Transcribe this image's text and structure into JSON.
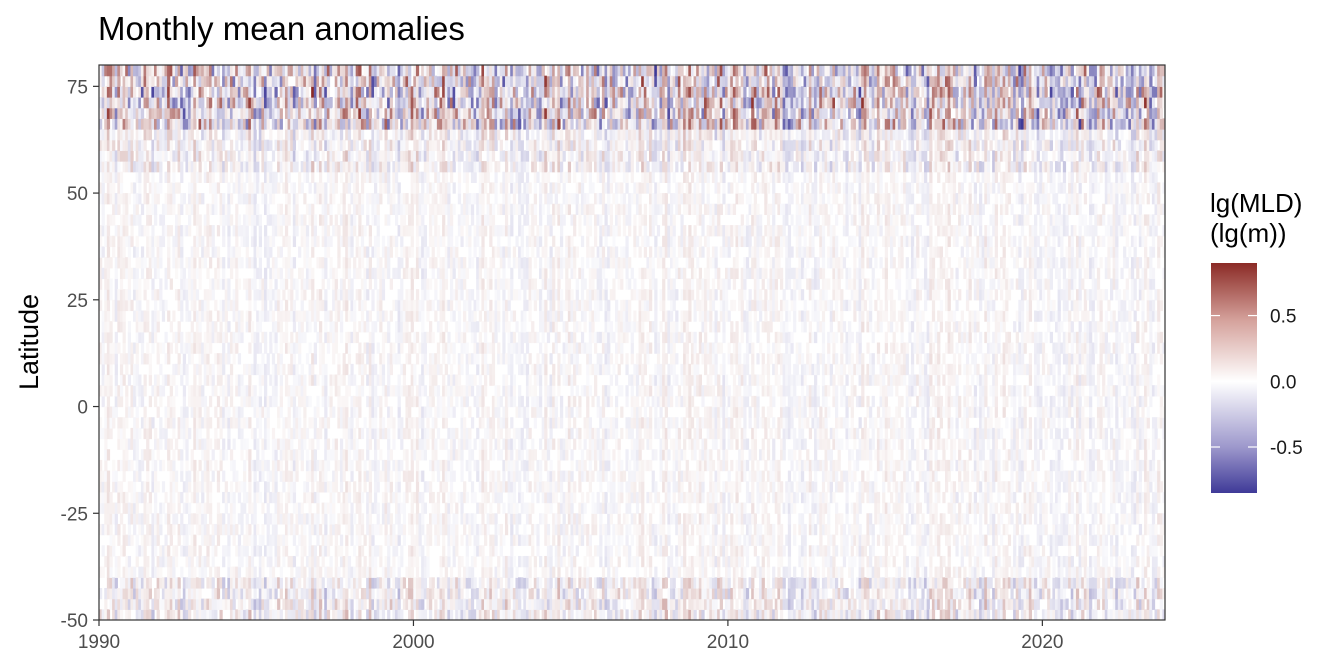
{
  "chart_data": {
    "type": "heatmap",
    "title": "Monthly mean anomalies",
    "xlabel": "",
    "ylabel": "Latitude",
    "x_ticks": [
      1990,
      2000,
      2010,
      2020
    ],
    "y_ticks": [
      75,
      50,
      25,
      0,
      -25,
      -50
    ],
    "x_range": [
      1990,
      2023.9
    ],
    "y_range": [
      -50,
      80
    ],
    "grid": false,
    "legend": {
      "title_line1": "lg(MLD)",
      "title_line2": "(lg(m))",
      "placement": "right",
      "ticks": [
        0.5,
        0.0,
        -0.5
      ],
      "tick_labels": [
        "0.5",
        "0.0",
        "-0.5"
      ],
      "range": [
        -0.85,
        0.9
      ]
    },
    "colorscale": {
      "low": "#3f3a98",
      "mid": "#ffffff",
      "high": "#8b2b26"
    },
    "bands": [
      {
        "lat_range": [
          65,
          80
        ],
        "note_level": "strong"
      },
      {
        "lat_range": [
          -50,
          -38
        ],
        "note_level": "moderate"
      }
    ]
  }
}
